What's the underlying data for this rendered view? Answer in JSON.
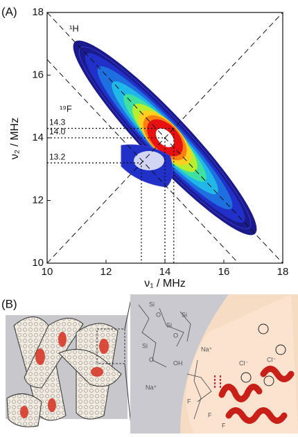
{
  "panel_a": {
    "label": "(A)",
    "x_label": "ν₁ / MHz",
    "y_label": "ν₂ / MHz",
    "xlim": [
      10,
      18
    ],
    "ylim": [
      10,
      18
    ],
    "xticks": [
      10,
      12,
      14,
      16,
      18
    ],
    "yticks": [
      10,
      12,
      14,
      16,
      18
    ],
    "annotations": [
      "¹H",
      "¹⁹F"
    ],
    "guides": [
      {
        "value": 14.3,
        "label": "14.3"
      },
      {
        "value": 14.0,
        "label": "14.0"
      },
      {
        "value": 13.2,
        "label": "13.2"
      }
    ]
  },
  "panel_b": {
    "label": "(B)",
    "atoms": [
      "Si",
      "O",
      "OH",
      "Na⁺",
      "Cl⁻",
      "F"
    ]
  }
}
